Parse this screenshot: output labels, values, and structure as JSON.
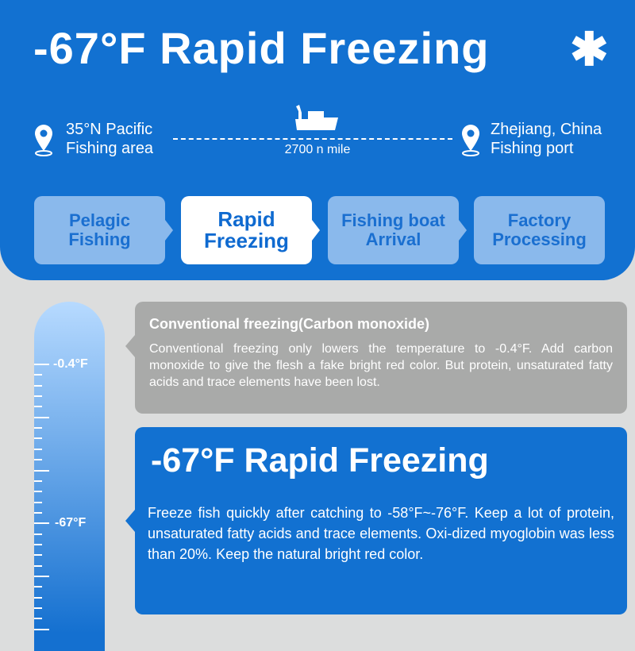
{
  "header": {
    "title": "-67°F Rapid Freezing",
    "icon": "snowflake-icon"
  },
  "route": {
    "origin_line1": "35°N Pacific",
    "origin_line2": "Fishing area",
    "destination_line1": "Zhejiang, China",
    "destination_line2": "Fishing port",
    "distance": "2700 n mile"
  },
  "steps": [
    {
      "label": "Pelagic Fishing"
    },
    {
      "label": "Rapid Freezing",
      "active": true
    },
    {
      "label": "Fishing boat Arrival"
    },
    {
      "label": "Factory Processing"
    }
  ],
  "thermometer": {
    "labels": [
      "-0.4°F",
      "-67°F"
    ]
  },
  "conventional": {
    "title": "Conventional freezing(Carbon monoxide)",
    "text": "Conventional freezing only lowers the temperature to -0.4°F. Add carbon monoxide to give the flesh a fake bright red color. But protein, unsaturated fatty acids and trace elements have been lost."
  },
  "rapid": {
    "title": "-67°F Rapid Freezing",
    "text": "Freeze fish quickly after catching to -58°F~-76°F. Keep a lot of protein, unsaturated fatty acids and trace elements. Oxi-dized myoglobin was less than 20%. Keep the natural bright red color."
  },
  "colors": {
    "primary": "#1271d1",
    "step": "#8ab9ec",
    "gray": "#a9aaa9",
    "background": "#dcdddd"
  }
}
